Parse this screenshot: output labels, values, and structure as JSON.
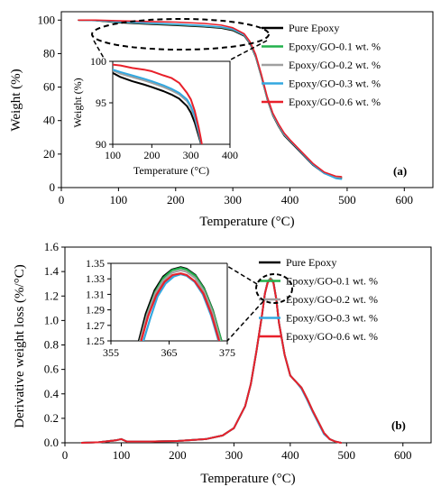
{
  "chart_data": [
    {
      "type": "line",
      "panel_label": "(a)",
      "xlabel": "Temperature (°C)",
      "ylabel": "Weight (%)",
      "xlim": [
        0,
        650
      ],
      "ylim": [
        0,
        105
      ],
      "xticks": [
        0,
        100,
        200,
        300,
        400,
        500,
        600
      ],
      "yticks": [
        0,
        20,
        40,
        60,
        80,
        100
      ],
      "legend_position": "top-right",
      "series": [
        {
          "name": "Pure Epoxy",
          "color": "#000000",
          "x": [
            30,
            60,
            100,
            150,
            200,
            250,
            280,
            300,
            320,
            330,
            340,
            350,
            360,
            370,
            380,
            390,
            400,
            420,
            440,
            460,
            480,
            490
          ],
          "y": [
            100,
            99.7,
            98.5,
            97.6,
            96.9,
            96.0,
            95.2,
            93.8,
            90.5,
            86,
            78,
            66,
            53,
            43,
            36.5,
            31,
            27.5,
            20.5,
            13.5,
            8.5,
            6,
            5.8
          ]
        },
        {
          "name": "Epoxy/GO-0.1 wt. %",
          "color": "#22b14c",
          "x": [
            30,
            60,
            100,
            150,
            200,
            250,
            280,
            300,
            320,
            330,
            340,
            350,
            360,
            370,
            380,
            390,
            400,
            420,
            440,
            460,
            480,
            490
          ],
          "y": [
            100,
            99.8,
            98.8,
            98.0,
            97.3,
            96.4,
            95.6,
            94.3,
            91.0,
            86.5,
            78.5,
            66.5,
            53.5,
            43.5,
            37,
            31.5,
            28,
            21,
            14,
            9,
            6.5,
            6.2
          ]
        },
        {
          "name": "Epoxy/GO-0.2 wt. %",
          "color": "#a0a0a0",
          "x": [
            30,
            60,
            100,
            150,
            200,
            250,
            280,
            300,
            320,
            330,
            340,
            350,
            360,
            370,
            380,
            390,
            400,
            420,
            440,
            460,
            480,
            490
          ],
          "y": [
            100,
            99.8,
            98.9,
            98.1,
            97.4,
            96.5,
            95.7,
            94.4,
            91.0,
            86.5,
            78.5,
            66.5,
            53.5,
            43.5,
            37,
            31.5,
            28,
            21,
            14,
            9,
            6.3,
            6
          ]
        },
        {
          "name": "Epoxy/GO-0.3 wt. %",
          "color": "#33a8e0",
          "x": [
            30,
            60,
            100,
            150,
            200,
            250,
            280,
            300,
            320,
            330,
            340,
            350,
            360,
            370,
            380,
            390,
            400,
            420,
            440,
            460,
            480,
            490
          ],
          "y": [
            100,
            99.8,
            99.0,
            98.3,
            97.6,
            96.7,
            95.9,
            94.6,
            91.2,
            86.8,
            79,
            67,
            54,
            44,
            37.5,
            32,
            28.2,
            21,
            13.8,
            8.5,
            5.5,
            5
          ]
        },
        {
          "name": "Epoxy/GO-0.6 wt. %",
          "color": "#e8202a",
          "x": [
            30,
            60,
            100,
            150,
            200,
            250,
            280,
            300,
            320,
            330,
            340,
            350,
            360,
            370,
            380,
            390,
            400,
            420,
            440,
            460,
            480,
            490
          ],
          "y": [
            100,
            100,
            99.6,
            99.2,
            98.8,
            98.0,
            97.0,
            95.4,
            91.8,
            87.2,
            79.5,
            67.5,
            54.5,
            44.5,
            38,
            32.5,
            28.6,
            21.5,
            14.5,
            9.2,
            6.8,
            6.5
          ]
        }
      ],
      "inset": {
        "xlabel": "Temperature (°C)",
        "ylabel": "Weight (%)",
        "xlim": [
          100,
          400
        ],
        "ylim": [
          90,
          100
        ],
        "xticks": [
          100,
          200,
          300,
          400
        ],
        "yticks": [
          90,
          95,
          100
        ],
        "series": [
          {
            "name": "Pure Epoxy",
            "color": "#000000",
            "x": [
              100,
              120,
              150,
              180,
              200,
              230,
              250,
              270,
              290,
              300,
              310,
              320,
              325,
              330
            ],
            "y": [
              98.6,
              98.1,
              97.6,
              97.2,
              96.9,
              96.4,
              96.0,
              95.5,
              94.6,
              93.8,
              92.6,
              91.0,
              90.2,
              89.5
            ]
          },
          {
            "name": "Epoxy/GO-0.2 wt. %",
            "color": "#a0a0a0",
            "x": [
              100,
              120,
              150,
              180,
              200,
              230,
              250,
              270,
              290,
              300,
              310,
              320,
              325,
              330
            ],
            "y": [
              98.9,
              98.5,
              98.1,
              97.7,
              97.4,
              96.9,
              96.5,
              96.0,
              95.2,
              94.4,
              93.2,
              91.4,
              90.4,
              89.5
            ]
          },
          {
            "name": "Epoxy/GO-0.3 wt. %",
            "color": "#33a8e0",
            "x": [
              100,
              120,
              150,
              180,
              200,
              230,
              250,
              270,
              290,
              300,
              310,
              320,
              325,
              330
            ],
            "y": [
              99.0,
              98.7,
              98.3,
              97.9,
              97.6,
              97.1,
              96.7,
              96.2,
              95.4,
              94.6,
              93.4,
              91.6,
              90.5,
              89.5
            ]
          },
          {
            "name": "Epoxy/GO-0.6 wt. %",
            "color": "#e8202a",
            "x": [
              100,
              120,
              150,
              180,
              200,
              230,
              250,
              270,
              290,
              300,
              310,
              320,
              325,
              330
            ],
            "y": [
              99.6,
              99.5,
              99.2,
              99.0,
              98.8,
              98.3,
              98.0,
              97.4,
              96.2,
              95.4,
              94.0,
              92.0,
              90.8,
              89.5
            ]
          }
        ]
      }
    },
    {
      "type": "line",
      "panel_label": "(b)",
      "xlabel": "Temperature (°C)",
      "ylabel": "Derivative weight loss (%/°C)",
      "xlim": [
        0,
        650
      ],
      "ylim": [
        0,
        1.6
      ],
      "xticks": [
        0,
        100,
        200,
        300,
        400,
        500,
        600
      ],
      "yticks": [
        0,
        0.2,
        0.4,
        0.6,
        0.8,
        1.0,
        1.2,
        1.4,
        1.6
      ],
      "ytick_labels": [
        "0.0",
        "0.2",
        "0.4",
        "0.6",
        "0.8",
        "1.0",
        "1.2",
        "1.4",
        "1.6"
      ],
      "legend_position": "top-right",
      "series": [
        {
          "name": "Pure Epoxy",
          "color": "#000000",
          "x": [
            30,
            60,
            90,
            100,
            110,
            150,
            200,
            250,
            280,
            300,
            320,
            330,
            340,
            350,
            355,
            360,
            365,
            370,
            375,
            380,
            390,
            400,
            410,
            420,
            430,
            440,
            450,
            460,
            470,
            480,
            490
          ],
          "y": [
            0,
            0.005,
            0.02,
            0.03,
            0.01,
            0.01,
            0.015,
            0.03,
            0.06,
            0.12,
            0.3,
            0.48,
            0.75,
            1.05,
            1.22,
            1.32,
            1.345,
            1.32,
            1.18,
            0.98,
            0.72,
            0.55,
            0.5,
            0.45,
            0.36,
            0.26,
            0.17,
            0.08,
            0.03,
            0.01,
            0
          ]
        },
        {
          "name": "Epoxy/GO-0.1 wt. %",
          "color": "#22b14c",
          "x": [
            30,
            60,
            90,
            100,
            110,
            150,
            200,
            250,
            280,
            300,
            320,
            330,
            340,
            350,
            355,
            360,
            365,
            370,
            375,
            380,
            390,
            400,
            410,
            420,
            430,
            440,
            450,
            460,
            470,
            480,
            490
          ],
          "y": [
            0,
            0.005,
            0.02,
            0.03,
            0.01,
            0.01,
            0.015,
            0.03,
            0.06,
            0.12,
            0.3,
            0.48,
            0.75,
            1.05,
            1.22,
            1.32,
            1.343,
            1.32,
            1.18,
            0.98,
            0.72,
            0.55,
            0.5,
            0.45,
            0.36,
            0.26,
            0.17,
            0.08,
            0.03,
            0.01,
            0
          ]
        },
        {
          "name": "Epoxy/GO-0.2 wt. %",
          "color": "#a0a0a0",
          "x": [
            30,
            60,
            90,
            100,
            110,
            150,
            200,
            250,
            280,
            300,
            320,
            330,
            340,
            350,
            355,
            360,
            365,
            370,
            375,
            380,
            390,
            400,
            410,
            420,
            430,
            440,
            450,
            460,
            470,
            480,
            490
          ],
          "y": [
            0,
            0.005,
            0.02,
            0.03,
            0.01,
            0.01,
            0.015,
            0.03,
            0.06,
            0.12,
            0.3,
            0.48,
            0.75,
            1.05,
            1.22,
            1.32,
            1.34,
            1.315,
            1.18,
            0.98,
            0.72,
            0.55,
            0.5,
            0.45,
            0.36,
            0.26,
            0.17,
            0.08,
            0.03,
            0.01,
            0
          ]
        },
        {
          "name": "Epoxy/GO-0.3 wt. %",
          "color": "#33a8e0",
          "x": [
            30,
            60,
            90,
            100,
            110,
            150,
            200,
            250,
            280,
            300,
            320,
            330,
            340,
            350,
            355,
            360,
            365,
            370,
            375,
            380,
            390,
            400,
            410,
            420,
            430,
            440,
            450,
            460,
            470,
            480,
            490
          ],
          "y": [
            0,
            0.005,
            0.02,
            0.03,
            0.01,
            0.01,
            0.015,
            0.03,
            0.06,
            0.12,
            0.3,
            0.48,
            0.75,
            1.05,
            1.22,
            1.31,
            1.336,
            1.31,
            1.18,
            0.98,
            0.72,
            0.55,
            0.5,
            0.44,
            0.35,
            0.25,
            0.16,
            0.07,
            0.03,
            0.01,
            0
          ]
        },
        {
          "name": "Epoxy/GO-0.6 wt. %",
          "color": "#e8202a",
          "x": [
            30,
            60,
            90,
            100,
            110,
            150,
            200,
            250,
            280,
            300,
            320,
            330,
            340,
            350,
            355,
            360,
            365,
            370,
            375,
            380,
            390,
            400,
            410,
            420,
            430,
            440,
            450,
            460,
            470,
            480,
            490
          ],
          "y": [
            0,
            0.005,
            0.02,
            0.03,
            0.01,
            0.01,
            0.015,
            0.03,
            0.06,
            0.12,
            0.3,
            0.48,
            0.75,
            1.05,
            1.22,
            1.31,
            1.337,
            1.31,
            1.18,
            0.98,
            0.72,
            0.55,
            0.5,
            0.45,
            0.36,
            0.26,
            0.17,
            0.08,
            0.03,
            0.01,
            0
          ]
        }
      ],
      "inset": {
        "xlim": [
          355,
          375
        ],
        "ylim": [
          1.25,
          1.35
        ],
        "xticks": [
          355,
          365,
          375
        ],
        "yticks": [
          1.25,
          1.27,
          1.29,
          1.31,
          1.33,
          1.35
        ],
        "ytick_labels": [
          "1.25",
          "1.27",
          "1.29",
          "1.31",
          "1.33",
          "1.35"
        ],
        "series": [
          {
            "name": "Pure Epoxy",
            "color": "#000000",
            "x": [
              359.8,
              361,
              362.5,
              364,
              365.5,
              367,
              368,
              369.5,
              371,
              372.5,
              374
            ],
            "y": [
              1.25,
              1.285,
              1.315,
              1.333,
              1.342,
              1.345,
              1.343,
              1.335,
              1.318,
              1.29,
              1.25
            ]
          },
          {
            "name": "Epoxy/GO-0.1 wt. %",
            "color": "#22b14c",
            "x": [
              360,
              361.2,
              362.6,
              364,
              365.5,
              367,
              368,
              369.5,
              371,
              372.5,
              374
            ],
            "y": [
              1.25,
              1.284,
              1.313,
              1.331,
              1.341,
              1.344,
              1.342,
              1.334,
              1.317,
              1.289,
              1.25
            ]
          },
          {
            "name": "Epoxy/GO-0.2 wt. %",
            "color": "#a0a0a0",
            "x": [
              360,
              361.2,
              362.6,
              364,
              365.5,
              367,
              368,
              369.5,
              371,
              372.5,
              373.8
            ],
            "y": [
              1.25,
              1.283,
              1.311,
              1.328,
              1.338,
              1.341,
              1.339,
              1.331,
              1.314,
              1.286,
              1.25
            ]
          },
          {
            "name": "Epoxy/GO-0.3 wt. %",
            "color": "#33a8e0",
            "x": [
              360.6,
              361.8,
              363,
              364.4,
              365.8,
              367,
              368,
              369.4,
              370.8,
              372.2,
              373.5
            ],
            "y": [
              1.25,
              1.28,
              1.307,
              1.324,
              1.333,
              1.336,
              1.334,
              1.326,
              1.31,
              1.283,
              1.25
            ]
          },
          {
            "name": "Epoxy/GO-0.6 wt. %",
            "color": "#e8202a",
            "x": [
              360.2,
              361.4,
              362.8,
              364.2,
              365.6,
              367,
              368,
              369.4,
              370.9,
              372.3,
              373.6
            ],
            "y": [
              1.25,
              1.282,
              1.309,
              1.326,
              1.335,
              1.337,
              1.335,
              1.327,
              1.311,
              1.284,
              1.25
            ]
          }
        ]
      }
    }
  ]
}
